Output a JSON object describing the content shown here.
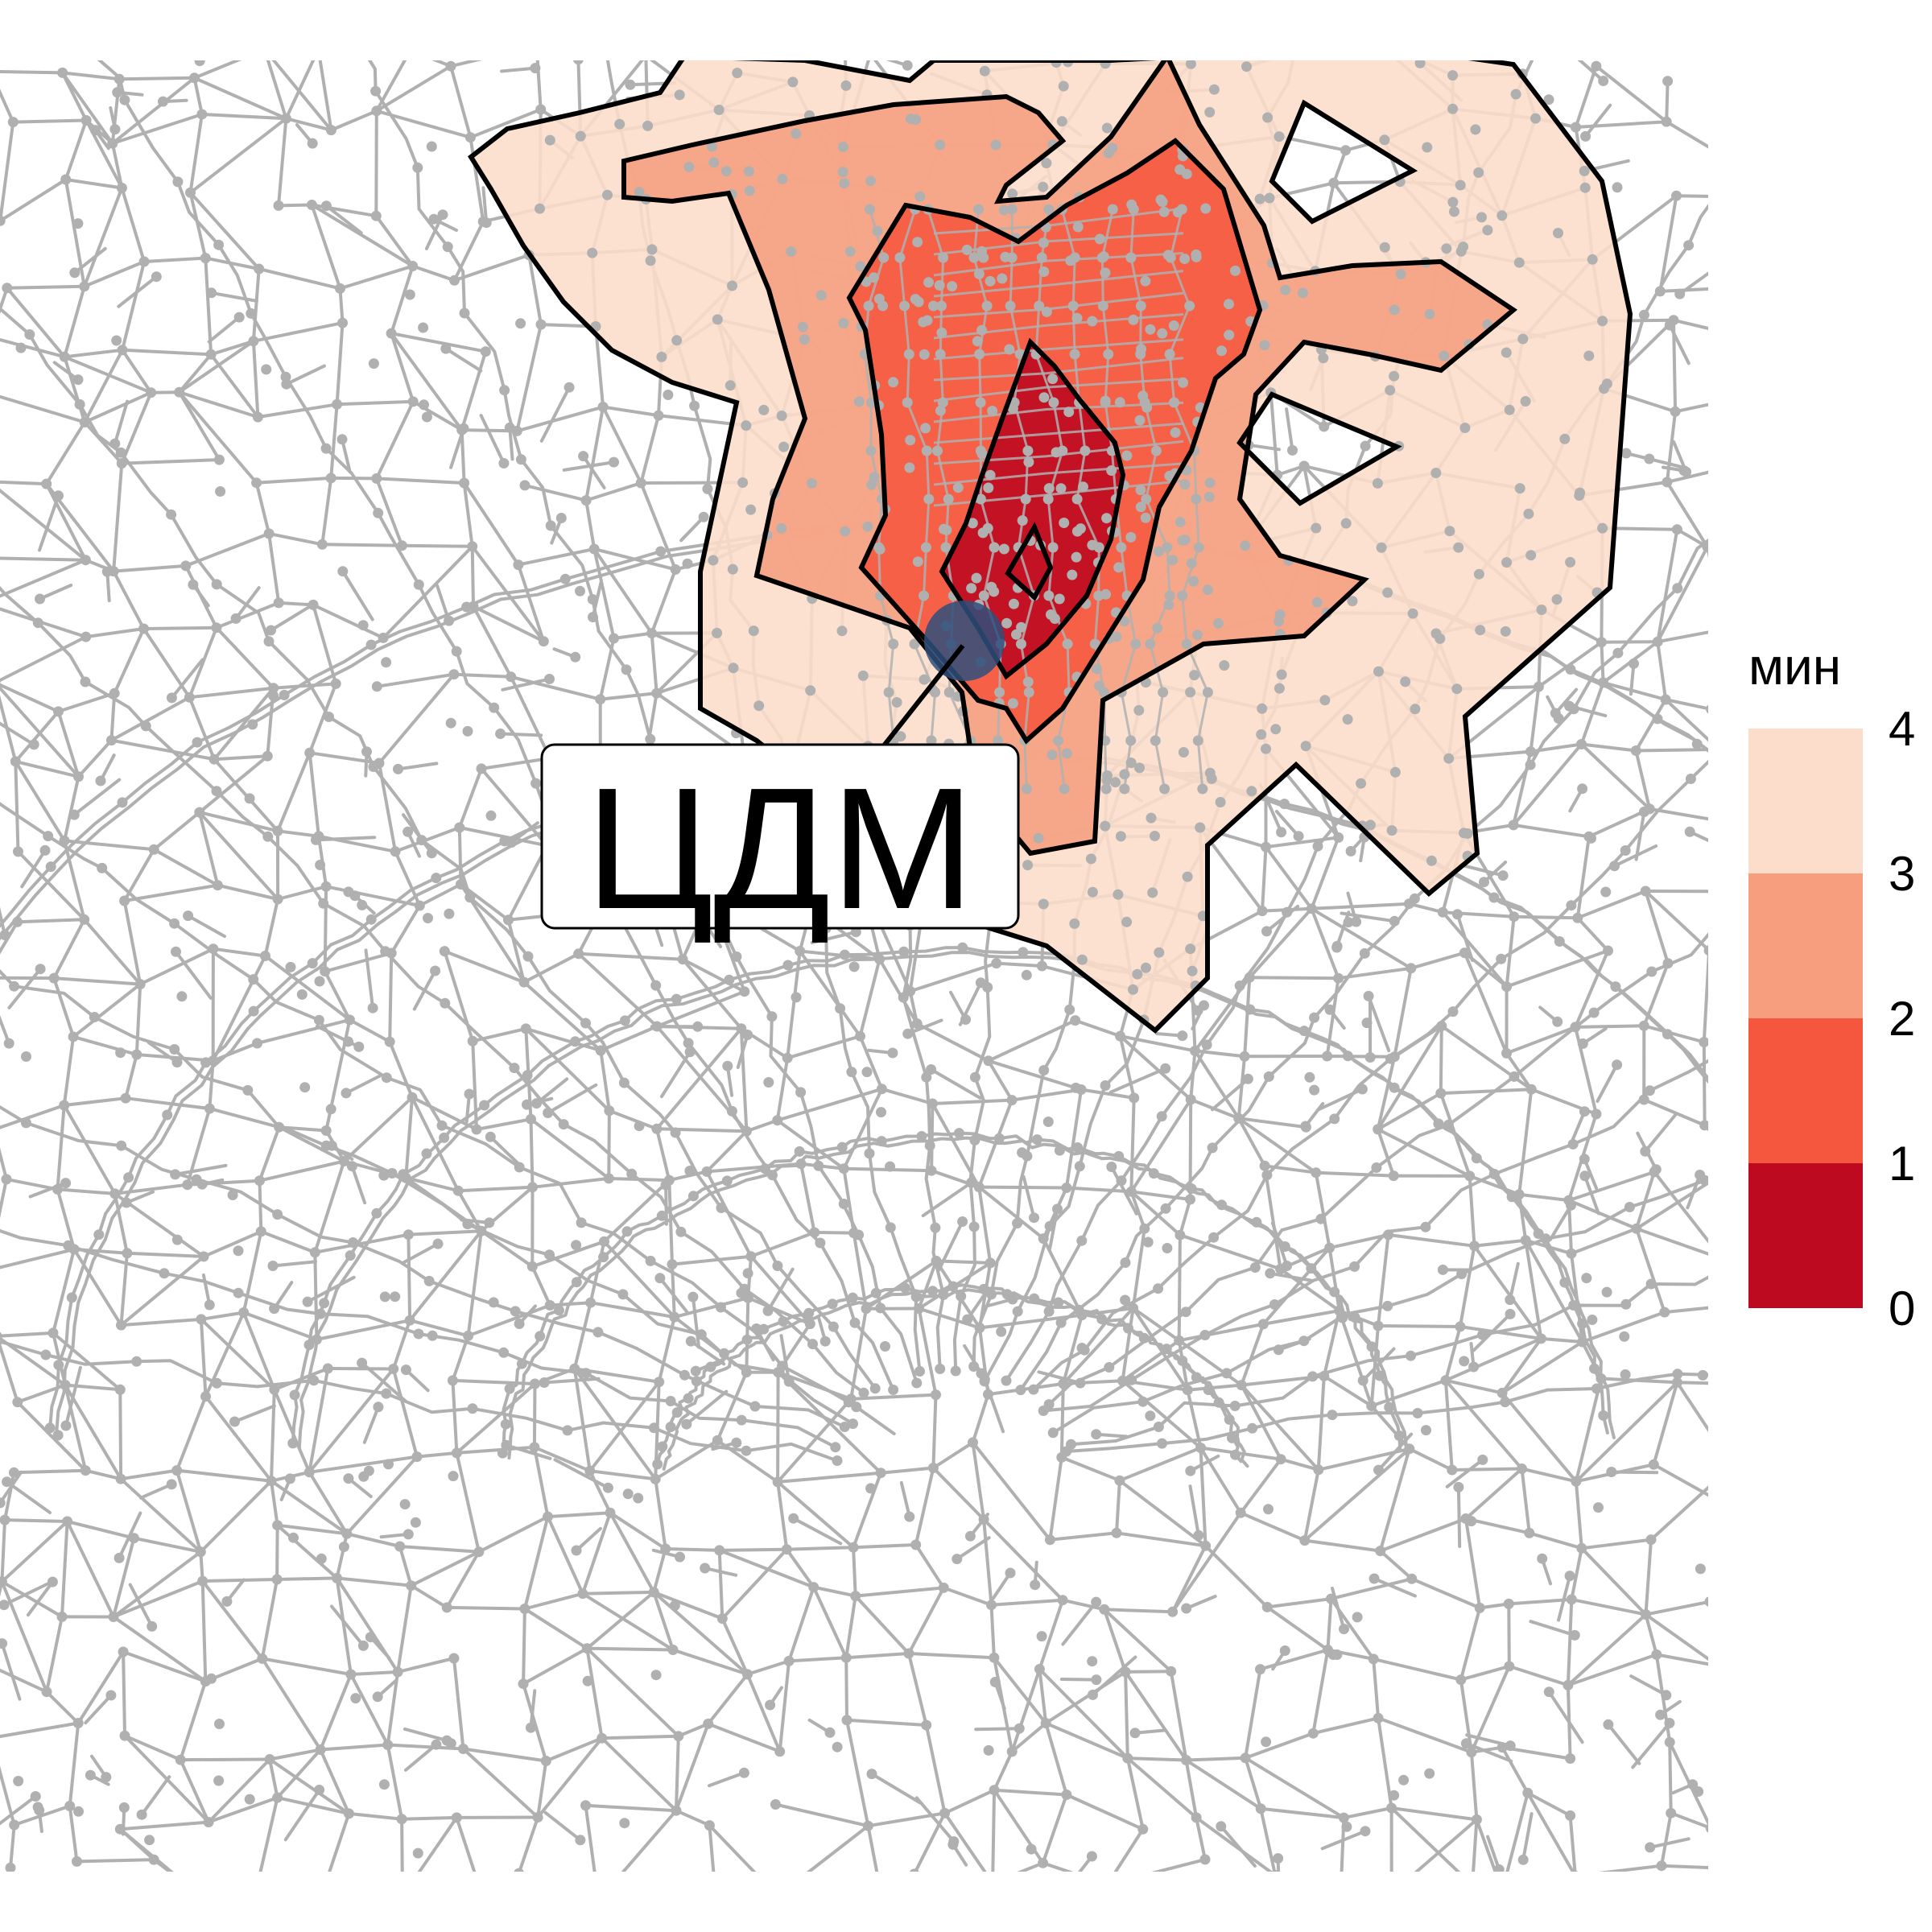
{
  "map": {
    "network_color": "#b0b0b0",
    "contour_color": "#000000",
    "origin": {
      "label": "ЦДМ",
      "marker_color": "#2f4f7c"
    }
  },
  "legend": {
    "title": "мин",
    "breaks": [
      "4",
      "3",
      "2",
      "1",
      "0"
    ],
    "bands": [
      {
        "range": "3–4",
        "color": "#fcdcca"
      },
      {
        "range": "2–3",
        "color": "#f69e7e"
      },
      {
        "range": "1–2",
        "color": "#f5573e"
      },
      {
        "range": "0–1",
        "color": "#be0a20"
      }
    ]
  }
}
